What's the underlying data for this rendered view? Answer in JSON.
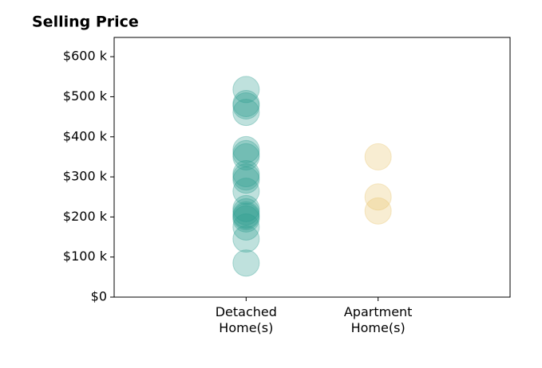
{
  "chart_data": {
    "type": "strip",
    "title": "Selling Price",
    "categories": [
      "Detached\nHome(s)",
      "Apartment\nHome(s)"
    ],
    "values": [
      [
        518000,
        483000,
        477000,
        461000,
        368000,
        358000,
        350000,
        308000,
        300000,
        292000,
        264000,
        221000,
        213000,
        205000,
        201000,
        195000,
        175000,
        145000,
        85000
      ],
      [
        350000,
        250000,
        215000
      ]
    ],
    "colors": [
      "#2a9d8f",
      "#e9c46a"
    ],
    "ylim": [
      0,
      648000
    ],
    "yticks": [
      {
        "value": 0,
        "label": "$0"
      },
      {
        "value": 100000,
        "label": "$100 k"
      },
      {
        "value": 200000,
        "label": "$200 k"
      },
      {
        "value": 300000,
        "label": "$300 k"
      },
      {
        "value": 400000,
        "label": "$400 k"
      },
      {
        "value": 500000,
        "label": "$500 k"
      },
      {
        "value": 600000,
        "label": "$600 k"
      }
    ]
  }
}
